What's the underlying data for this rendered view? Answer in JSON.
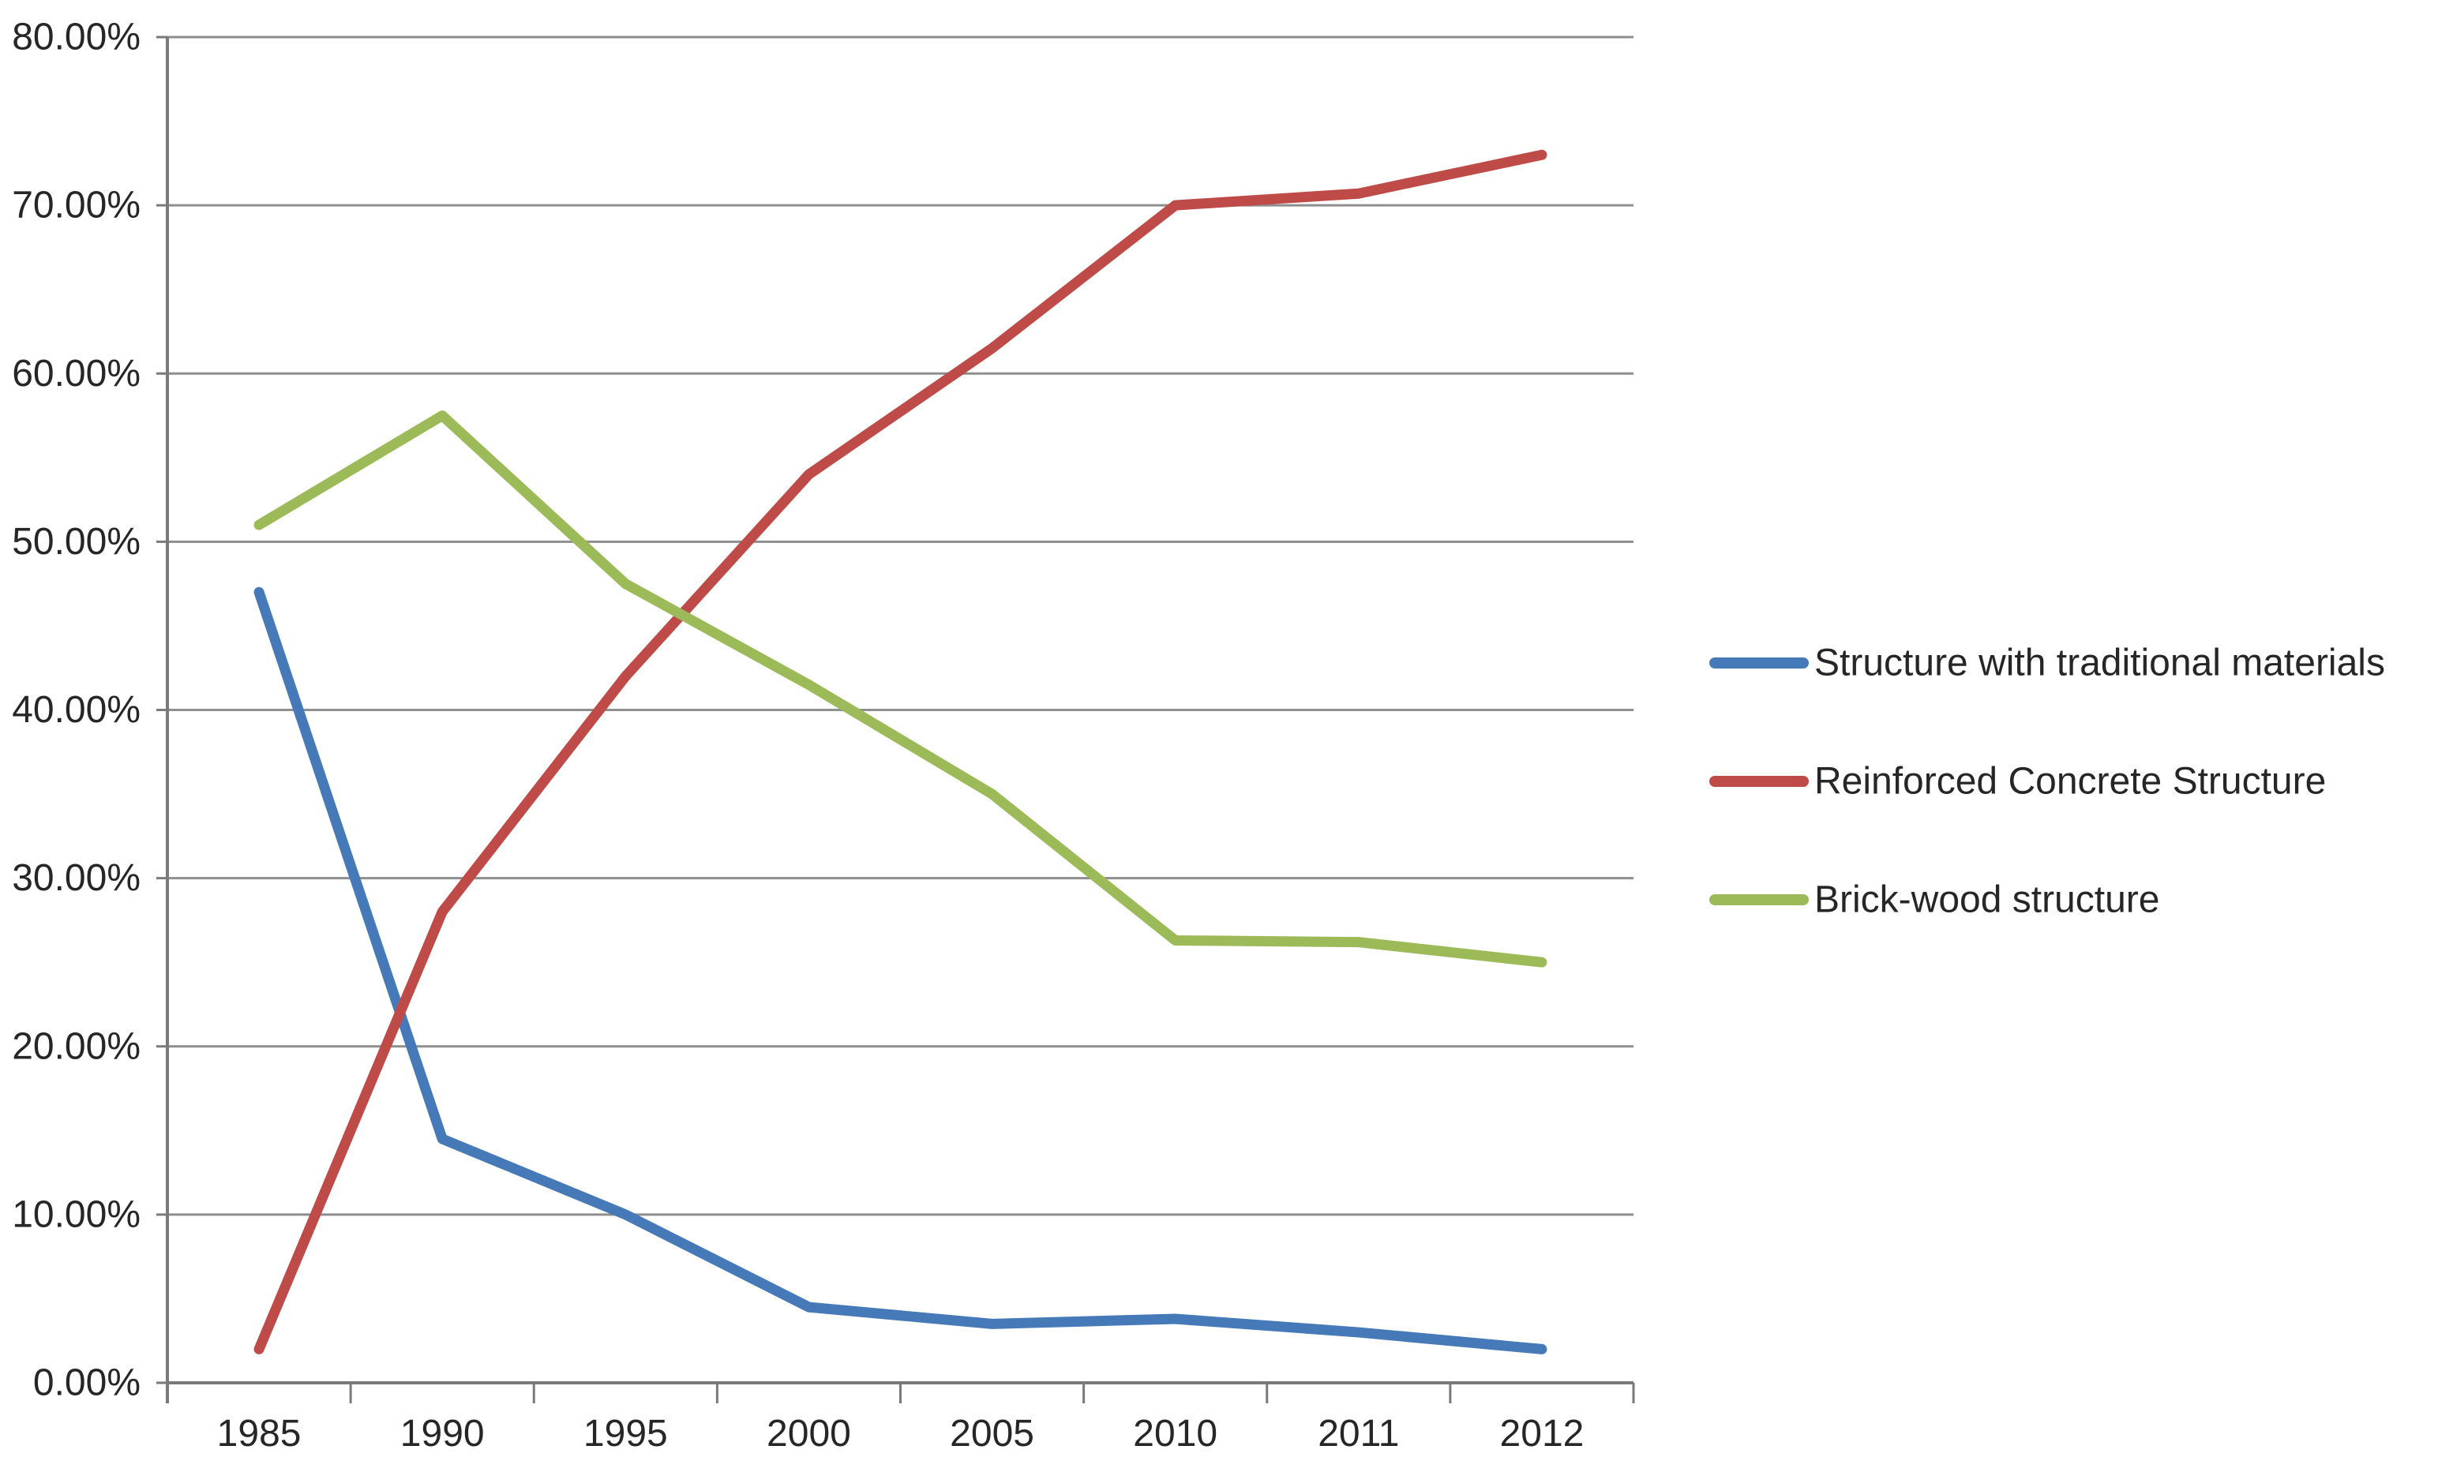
{
  "chart_data": {
    "type": "line",
    "categories": [
      "1985",
      "1990",
      "1995",
      "2000",
      "2005",
      "2010",
      "2011",
      "2012"
    ],
    "series": [
      {
        "name": "Structure with traditional materials",
        "color": "#4579B8",
        "values": [
          47,
          14.5,
          10,
          4.5,
          3.5,
          3.8,
          3,
          2
        ]
      },
      {
        "name": "Reinforced Concrete Structure",
        "color": "#BE4B48",
        "values": [
          2,
          28,
          42,
          54,
          61.5,
          70,
          70.7,
          73
        ]
      },
      {
        "name": "Brick-wood structure",
        "color": "#9CBB58",
        "values": [
          51,
          57.5,
          47.5,
          41.5,
          35,
          26.3,
          26.2,
          25
        ]
      }
    ],
    "y_axis": {
      "min": 0,
      "max": 80,
      "step": 10,
      "tick_labels": [
        "0.00%",
        "10.00%",
        "20.00%",
        "30.00%",
        "40.00%",
        "50.00%",
        "60.00%",
        "70.00%",
        "80.00%"
      ],
      "format": "percent_two_decimals"
    },
    "x_axis": {
      "tick_labels": [
        "1985",
        "1990",
        "1995",
        "2000",
        "2005",
        "2010",
        "2011",
        "2012"
      ]
    },
    "grid": true,
    "legend_position": "right",
    "legend_labels": [
      "Structure with traditional materials",
      "Reinforced Concrete Structure",
      "Brick-wood structure"
    ],
    "colors": {
      "background": "#ffffff",
      "gridline": "#8e8e8e",
      "axis": "#7a7a7a",
      "label_text": "#262626"
    }
  }
}
